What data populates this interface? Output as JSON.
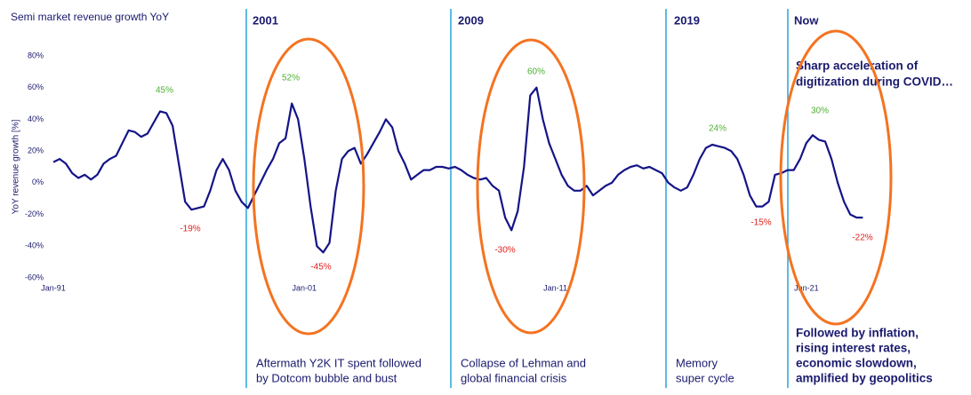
{
  "chart_data": {
    "type": "line",
    "title": "Semi market revenue growth YoY",
    "y_label": "YoY revenue growth [%]",
    "color": "#141488",
    "x": [
      1991,
      1991.25,
      1991.5,
      1991.75,
      1992,
      1992.25,
      1992.5,
      1992.75,
      1993,
      1993.25,
      1993.5,
      1993.75,
      1994,
      1994.25,
      1994.5,
      1994.75,
      1995,
      1995.25,
      1995.5,
      1995.75,
      1996,
      1996.25,
      1996.5,
      1996.75,
      1997,
      1997.25,
      1997.5,
      1997.75,
      1998,
      1998.25,
      1998.5,
      1998.75,
      1999,
      1999.25,
      1999.5,
      1999.75,
      2000,
      2000.25,
      2000.5,
      2000.75,
      2001,
      2001.25,
      2001.5,
      2001.75,
      2002,
      2002.25,
      2002.5,
      2002.75,
      2003,
      2003.25,
      2003.5,
      2003.75,
      2004,
      2004.25,
      2004.5,
      2004.75,
      2005,
      2005.25,
      2005.5,
      2005.75,
      2006,
      2006.25,
      2006.5,
      2006.75,
      2007,
      2007.25,
      2007.5,
      2007.75,
      2008,
      2008.25,
      2008.5,
      2008.75,
      2009,
      2009.25,
      2009.5,
      2009.75,
      2010,
      2010.25,
      2010.5,
      2010.75,
      2011,
      2011.25,
      2011.5,
      2011.75,
      2012,
      2012.25,
      2012.5,
      2012.75,
      2013,
      2013.25,
      2013.5,
      2013.75,
      2014,
      2014.25,
      2014.5,
      2014.75,
      2015,
      2015.25,
      2015.5,
      2015.75,
      2016,
      2016.25,
      2016.5,
      2016.75,
      2017,
      2017.25,
      2017.5,
      2017.75,
      2018,
      2018.25,
      2018.5,
      2018.75,
      2019,
      2019.25,
      2019.5,
      2019.75,
      2020,
      2020.25,
      2020.5,
      2020.75,
      2021,
      2021.25,
      2021.5,
      2021.75,
      2022,
      2022.25,
      2022.5,
      2022.75,
      2023,
      2023.25
    ],
    "values": [
      13,
      15,
      12,
      6,
      3,
      5,
      2,
      5,
      12,
      15,
      17,
      25,
      33,
      32,
      29,
      31,
      38,
      45,
      44,
      36,
      12,
      -12,
      -17,
      -16,
      -15,
      -5,
      8,
      15,
      8,
      -5,
      -12,
      -16,
      -8,
      0,
      8,
      15,
      25,
      28,
      50,
      40,
      15,
      -15,
      -40,
      -44,
      -38,
      -5,
      15,
      20,
      22,
      12,
      18,
      25,
      32,
      40,
      35,
      20,
      12,
      2,
      5,
      8,
      8,
      10,
      10,
      9,
      10,
      8,
      5,
      3,
      2,
      3,
      -2,
      -5,
      -22,
      -30,
      -18,
      10,
      55,
      60,
      40,
      25,
      15,
      5,
      -2,
      -5,
      -5,
      -2,
      -8,
      -5,
      -2,
      0,
      5,
      8,
      10,
      11,
      9,
      10,
      8,
      6,
      0,
      -3,
      -5,
      -3,
      5,
      15,
      22,
      24,
      23,
      22,
      20,
      15,
      5,
      -8,
      -15,
      -15,
      -12,
      5,
      6,
      8,
      8,
      15,
      25,
      30,
      27,
      26,
      15,
      0,
      -12,
      -20,
      -22,
      -22
    ],
    "xlim": [
      1991,
      2024.3
    ],
    "ylim": [
      -60,
      80
    ],
    "yticks": [
      {
        "value": -60,
        "label": "-60%"
      },
      {
        "value": -40,
        "label": "-40%"
      },
      {
        "value": -20,
        "label": "-20%"
      },
      {
        "value": 0,
        "label": "0%"
      },
      {
        "value": 20,
        "label": "20%"
      },
      {
        "value": 40,
        "label": "40%"
      },
      {
        "value": 60,
        "label": "60%"
      },
      {
        "value": 80,
        "label": "80%"
      }
    ],
    "xticks": [
      {
        "value": 1991,
        "label": "Jan-91"
      },
      {
        "value": 2001,
        "label": "Jan-01"
      },
      {
        "value": 2011,
        "label": "Jan-11"
      },
      {
        "value": 2021,
        "label": "Jan-21"
      }
    ],
    "annotations": [
      "45%",
      "-19%",
      "52%",
      "-45%",
      "60%",
      "-30%",
      "24%",
      "-15%",
      "30%",
      "-22%"
    ],
    "periods": [
      {
        "title": "2001",
        "caption": [
          "Aftermath Y2K IT spent followed",
          "by Dotcom bubble and bust"
        ]
      },
      {
        "title": "2009",
        "caption": [
          "Collapse of Lehman and",
          "global financial crisis"
        ]
      },
      {
        "title": "2019",
        "caption": [
          "Memory",
          "super cycle"
        ]
      },
      {
        "title": "Now",
        "note": [
          "Sharp acceleration of",
          "digitization during COVID…"
        ],
        "caption": [
          "Followed by inflation,",
          "rising interest rates,",
          "economic slowdown,",
          "amplified by geopolitics"
        ]
      }
    ]
  }
}
